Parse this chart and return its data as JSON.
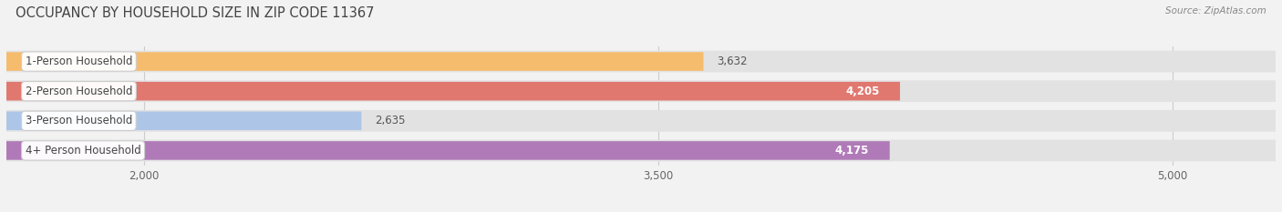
{
  "title": "OCCUPANCY BY HOUSEHOLD SIZE IN ZIP CODE 11367",
  "source": "Source: ZipAtlas.com",
  "categories": [
    "1-Person Household",
    "2-Person Household",
    "3-Person Household",
    "4+ Person Household"
  ],
  "values": [
    3632,
    4205,
    2635,
    4175
  ],
  "bar_colors": [
    "#f5bc6e",
    "#e07870",
    "#adc6e8",
    "#b07ab8"
  ],
  "label_bg_colors": [
    "#f5bc6e",
    "#e07870",
    "#adc6e8",
    "#b07ab8"
  ],
  "inside_label": [
    false,
    true,
    false,
    true
  ],
  "xlim": [
    1600,
    5300
  ],
  "xticks": [
    2000,
    3500,
    5000
  ],
  "background_color": "#f2f2f2",
  "bar_bg_color": "#e2e2e2",
  "title_fontsize": 10.5,
  "source_fontsize": 7.5,
  "bar_label_fontsize": 8.5,
  "category_fontsize": 8.5
}
